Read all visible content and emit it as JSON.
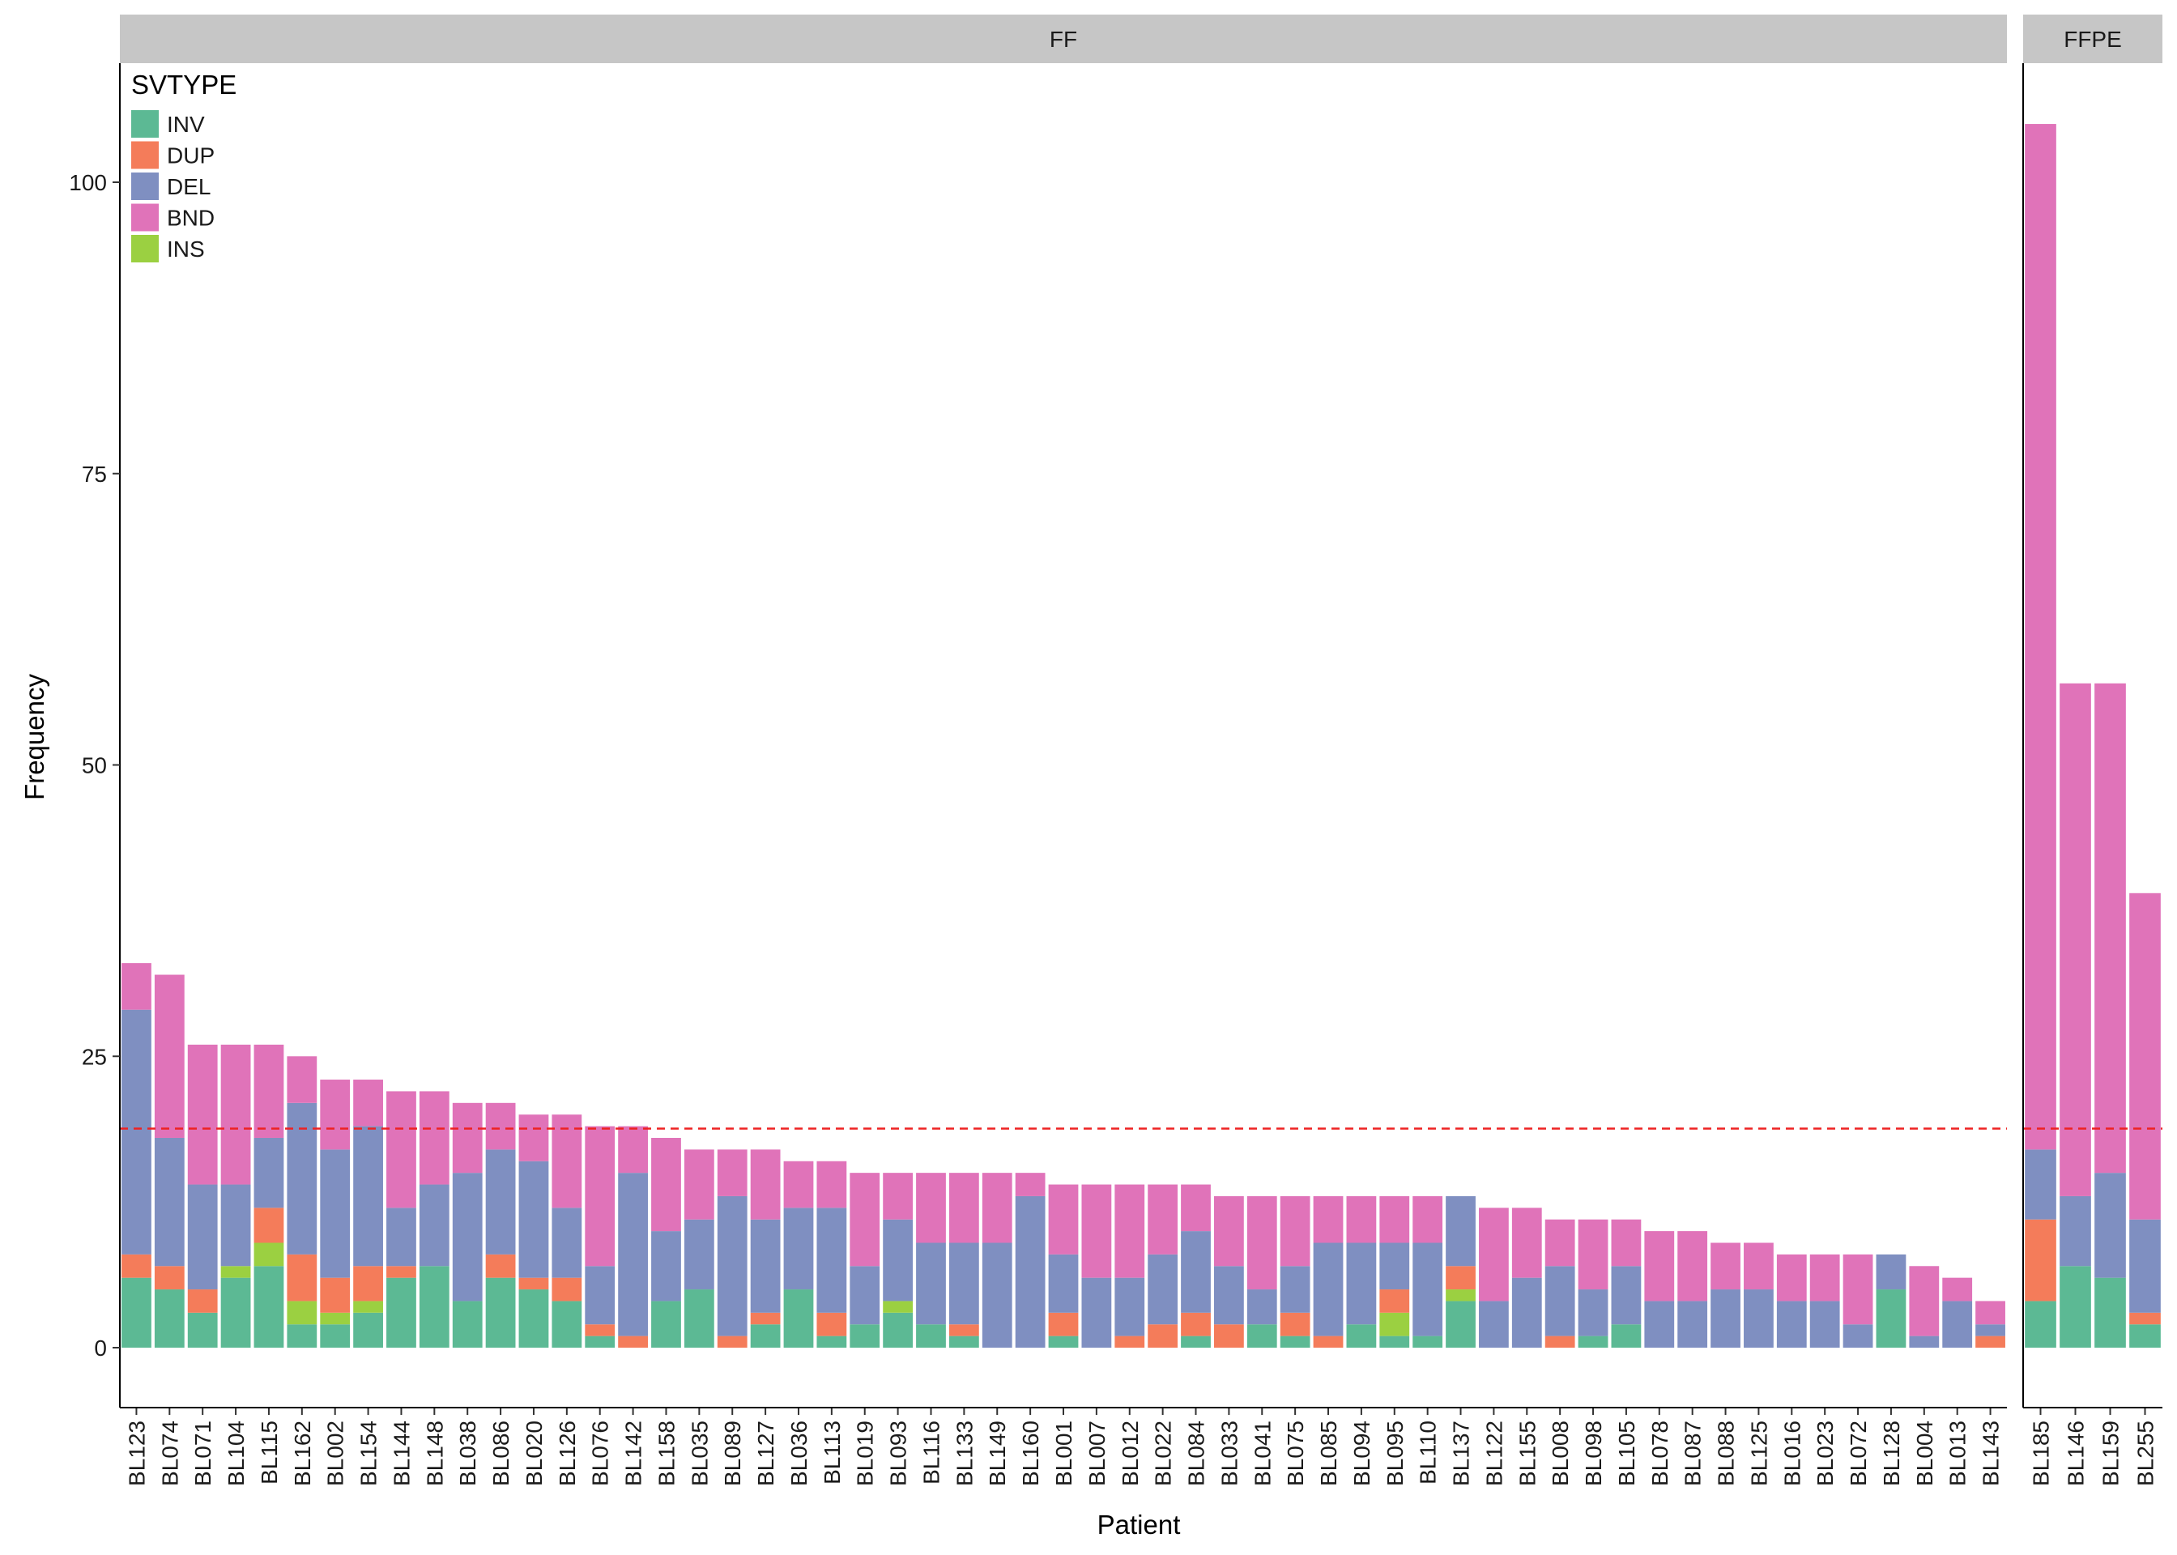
{
  "chart_data": {
    "type": "bar",
    "stacked": true,
    "xlabel": "Patient",
    "ylabel": "Frequency",
    "ylim": [
      -5,
      110
    ],
    "yticks": [
      0,
      25,
      50,
      75,
      100
    ],
    "grid": false,
    "threshold": {
      "value": 18.8,
      "color": "#ee2222",
      "style": "dashed"
    },
    "legend": {
      "title": "SVTYPE",
      "placement": "top-left",
      "entries": [
        {
          "name": "INV",
          "color": "#5cb994"
        },
        {
          "name": "DUP",
          "color": "#f47c5a"
        },
        {
          "name": "DEL",
          "color": "#7f8fc1"
        },
        {
          "name": "BND",
          "color": "#e073b9"
        },
        {
          "name": "INS",
          "color": "#9bd041"
        }
      ]
    },
    "stack_order": [
      "INV",
      "INS",
      "DUP",
      "DEL",
      "BND"
    ],
    "colors": {
      "INV": "#5cb994",
      "DUP": "#f47c5a",
      "DEL": "#7f8fc1",
      "BND": "#e073b9",
      "INS": "#9bd041"
    },
    "facets": [
      {
        "label": "FF",
        "patients": [
          {
            "id": "BL123",
            "INV": 6,
            "DUP": 2,
            "DEL": 21,
            "BND": 4,
            "INS": 0
          },
          {
            "id": "BL074",
            "INV": 5,
            "DUP": 2,
            "DEL": 11,
            "BND": 14,
            "INS": 0
          },
          {
            "id": "BL071",
            "INV": 3,
            "DUP": 2,
            "DEL": 9,
            "BND": 12,
            "INS": 0
          },
          {
            "id": "BL104",
            "INV": 6,
            "DUP": 0,
            "DEL": 7,
            "BND": 12,
            "INS": 1
          },
          {
            "id": "BL115",
            "INV": 7,
            "DUP": 3,
            "DEL": 6,
            "BND": 8,
            "INS": 2
          },
          {
            "id": "BL162",
            "INV": 2,
            "DUP": 4,
            "DEL": 13,
            "BND": 4,
            "INS": 2
          },
          {
            "id": "BL002",
            "INV": 2,
            "DUP": 3,
            "DEL": 11,
            "BND": 6,
            "INS": 1
          },
          {
            "id": "BL154",
            "INV": 3,
            "DUP": 3,
            "DEL": 12,
            "BND": 4,
            "INS": 1
          },
          {
            "id": "BL144",
            "INV": 6,
            "DUP": 1,
            "DEL": 5,
            "BND": 10,
            "INS": 0
          },
          {
            "id": "BL148",
            "INV": 7,
            "DUP": 0,
            "DEL": 7,
            "BND": 8,
            "INS": 0
          },
          {
            "id": "BL038",
            "INV": 4,
            "DUP": 0,
            "DEL": 11,
            "BND": 6,
            "INS": 0
          },
          {
            "id": "BL086",
            "INV": 6,
            "DUP": 2,
            "DEL": 9,
            "BND": 4,
            "INS": 0
          },
          {
            "id": "BL020",
            "INV": 5,
            "DUP": 1,
            "DEL": 10,
            "BND": 4,
            "INS": 0
          },
          {
            "id": "BL126",
            "INV": 4,
            "DUP": 2,
            "DEL": 6,
            "BND": 8,
            "INS": 0
          },
          {
            "id": "BL076",
            "INV": 1,
            "DUP": 1,
            "DEL": 5,
            "BND": 12,
            "INS": 0
          },
          {
            "id": "BL142",
            "INV": 0,
            "DUP": 1,
            "DEL": 14,
            "BND": 4,
            "INS": 0
          },
          {
            "id": "BL158",
            "INV": 4,
            "DUP": 0,
            "DEL": 6,
            "BND": 8,
            "INS": 0
          },
          {
            "id": "BL035",
            "INV": 5,
            "DUP": 0,
            "DEL": 6,
            "BND": 6,
            "INS": 0
          },
          {
            "id": "BL089",
            "INV": 0,
            "DUP": 1,
            "DEL": 12,
            "BND": 4,
            "INS": 0
          },
          {
            "id": "BL127",
            "INV": 2,
            "DUP": 1,
            "DEL": 8,
            "BND": 6,
            "INS": 0
          },
          {
            "id": "BL036",
            "INV": 5,
            "DUP": 0,
            "DEL": 7,
            "BND": 4,
            "INS": 0
          },
          {
            "id": "BL113",
            "INV": 1,
            "DUP": 2,
            "DEL": 9,
            "BND": 4,
            "INS": 0
          },
          {
            "id": "BL019",
            "INV": 2,
            "DUP": 0,
            "DEL": 5,
            "BND": 8,
            "INS": 0
          },
          {
            "id": "BL093",
            "INV": 3,
            "DUP": 0,
            "DEL": 7,
            "BND": 4,
            "INS": 1
          },
          {
            "id": "BL116",
            "INV": 2,
            "DUP": 0,
            "DEL": 7,
            "BND": 6,
            "INS": 0
          },
          {
            "id": "BL133",
            "INV": 1,
            "DUP": 1,
            "DEL": 7,
            "BND": 6,
            "INS": 0
          },
          {
            "id": "BL149",
            "INV": 0,
            "DUP": 0,
            "DEL": 9,
            "BND": 6,
            "INS": 0
          },
          {
            "id": "BL160",
            "INV": 0,
            "DUP": 0,
            "DEL": 13,
            "BND": 2,
            "INS": 0
          },
          {
            "id": "BL001",
            "INV": 1,
            "DUP": 2,
            "DEL": 5,
            "BND": 6,
            "INS": 0
          },
          {
            "id": "BL007",
            "INV": 0,
            "DUP": 0,
            "DEL": 6,
            "BND": 8,
            "INS": 0
          },
          {
            "id": "BL012",
            "INV": 0,
            "DUP": 1,
            "DEL": 5,
            "BND": 8,
            "INS": 0
          },
          {
            "id": "BL022",
            "INV": 0,
            "DUP": 2,
            "DEL": 6,
            "BND": 6,
            "INS": 0
          },
          {
            "id": "BL084",
            "INV": 1,
            "DUP": 2,
            "DEL": 7,
            "BND": 4,
            "INS": 0
          },
          {
            "id": "BL033",
            "INV": 0,
            "DUP": 2,
            "DEL": 5,
            "BND": 6,
            "INS": 0
          },
          {
            "id": "BL041",
            "INV": 2,
            "DUP": 0,
            "DEL": 3,
            "BND": 8,
            "INS": 0
          },
          {
            "id": "BL075",
            "INV": 1,
            "DUP": 2,
            "DEL": 4,
            "BND": 6,
            "INS": 0
          },
          {
            "id": "BL085",
            "INV": 0,
            "DUP": 1,
            "DEL": 8,
            "BND": 4,
            "INS": 0
          },
          {
            "id": "BL094",
            "INV": 2,
            "DUP": 0,
            "DEL": 7,
            "BND": 4,
            "INS": 0
          },
          {
            "id": "BL095",
            "INV": 1,
            "DUP": 2,
            "DEL": 4,
            "BND": 4,
            "INS": 2
          },
          {
            "id": "BL110",
            "INV": 1,
            "DUP": 0,
            "DEL": 8,
            "BND": 4,
            "INS": 0
          },
          {
            "id": "BL137",
            "INV": 4,
            "DUP": 2,
            "DEL": 6,
            "BND": 0,
            "INS": 1
          },
          {
            "id": "BL122",
            "INV": 0,
            "DUP": 0,
            "DEL": 4,
            "BND": 8,
            "INS": 0
          },
          {
            "id": "BL155",
            "INV": 0,
            "DUP": 0,
            "DEL": 6,
            "BND": 6,
            "INS": 0
          },
          {
            "id": "BL008",
            "INV": 0,
            "DUP": 1,
            "DEL": 6,
            "BND": 4,
            "INS": 0
          },
          {
            "id": "BL098",
            "INV": 1,
            "DUP": 0,
            "DEL": 4,
            "BND": 6,
            "INS": 0
          },
          {
            "id": "BL105",
            "INV": 2,
            "DUP": 0,
            "DEL": 5,
            "BND": 4,
            "INS": 0
          },
          {
            "id": "BL078",
            "INV": 0,
            "DUP": 0,
            "DEL": 4,
            "BND": 6,
            "INS": 0
          },
          {
            "id": "BL087",
            "INV": 0,
            "DUP": 0,
            "DEL": 4,
            "BND": 6,
            "INS": 0
          },
          {
            "id": "BL088",
            "INV": 0,
            "DUP": 0,
            "DEL": 5,
            "BND": 4,
            "INS": 0
          },
          {
            "id": "BL125",
            "INV": 0,
            "DUP": 0,
            "DEL": 5,
            "BND": 4,
            "INS": 0
          },
          {
            "id": "BL016",
            "INV": 0,
            "DUP": 0,
            "DEL": 4,
            "BND": 4,
            "INS": 0
          },
          {
            "id": "BL023",
            "INV": 0,
            "DUP": 0,
            "DEL": 4,
            "BND": 4,
            "INS": 0
          },
          {
            "id": "BL072",
            "INV": 0,
            "DUP": 0,
            "DEL": 2,
            "BND": 6,
            "INS": 0
          },
          {
            "id": "BL128",
            "INV": 5,
            "DUP": 0,
            "DEL": 3,
            "BND": 0,
            "INS": 0
          },
          {
            "id": "BL004",
            "INV": 0,
            "DUP": 0,
            "DEL": 1,
            "BND": 6,
            "INS": 0
          },
          {
            "id": "BL013",
            "INV": 0,
            "DUP": 0,
            "DEL": 4,
            "BND": 2,
            "INS": 0
          },
          {
            "id": "BL143",
            "INV": 0,
            "DUP": 1,
            "DEL": 1,
            "BND": 2,
            "INS": 0
          }
        ]
      },
      {
        "label": "FFPE",
        "patients": [
          {
            "id": "BL185",
            "INV": 4,
            "DUP": 7,
            "DEL": 6,
            "BND": 88,
            "INS": 0
          },
          {
            "id": "BL146",
            "INV": 7,
            "DUP": 0,
            "DEL": 6,
            "BND": 44,
            "INS": 0
          },
          {
            "id": "BL159",
            "INV": 6,
            "DUP": 0,
            "DEL": 9,
            "BND": 42,
            "INS": 0
          },
          {
            "id": "BL255",
            "INV": 2,
            "DUP": 1,
            "DEL": 8,
            "BND": 28,
            "INS": 0
          }
        ]
      }
    ]
  }
}
